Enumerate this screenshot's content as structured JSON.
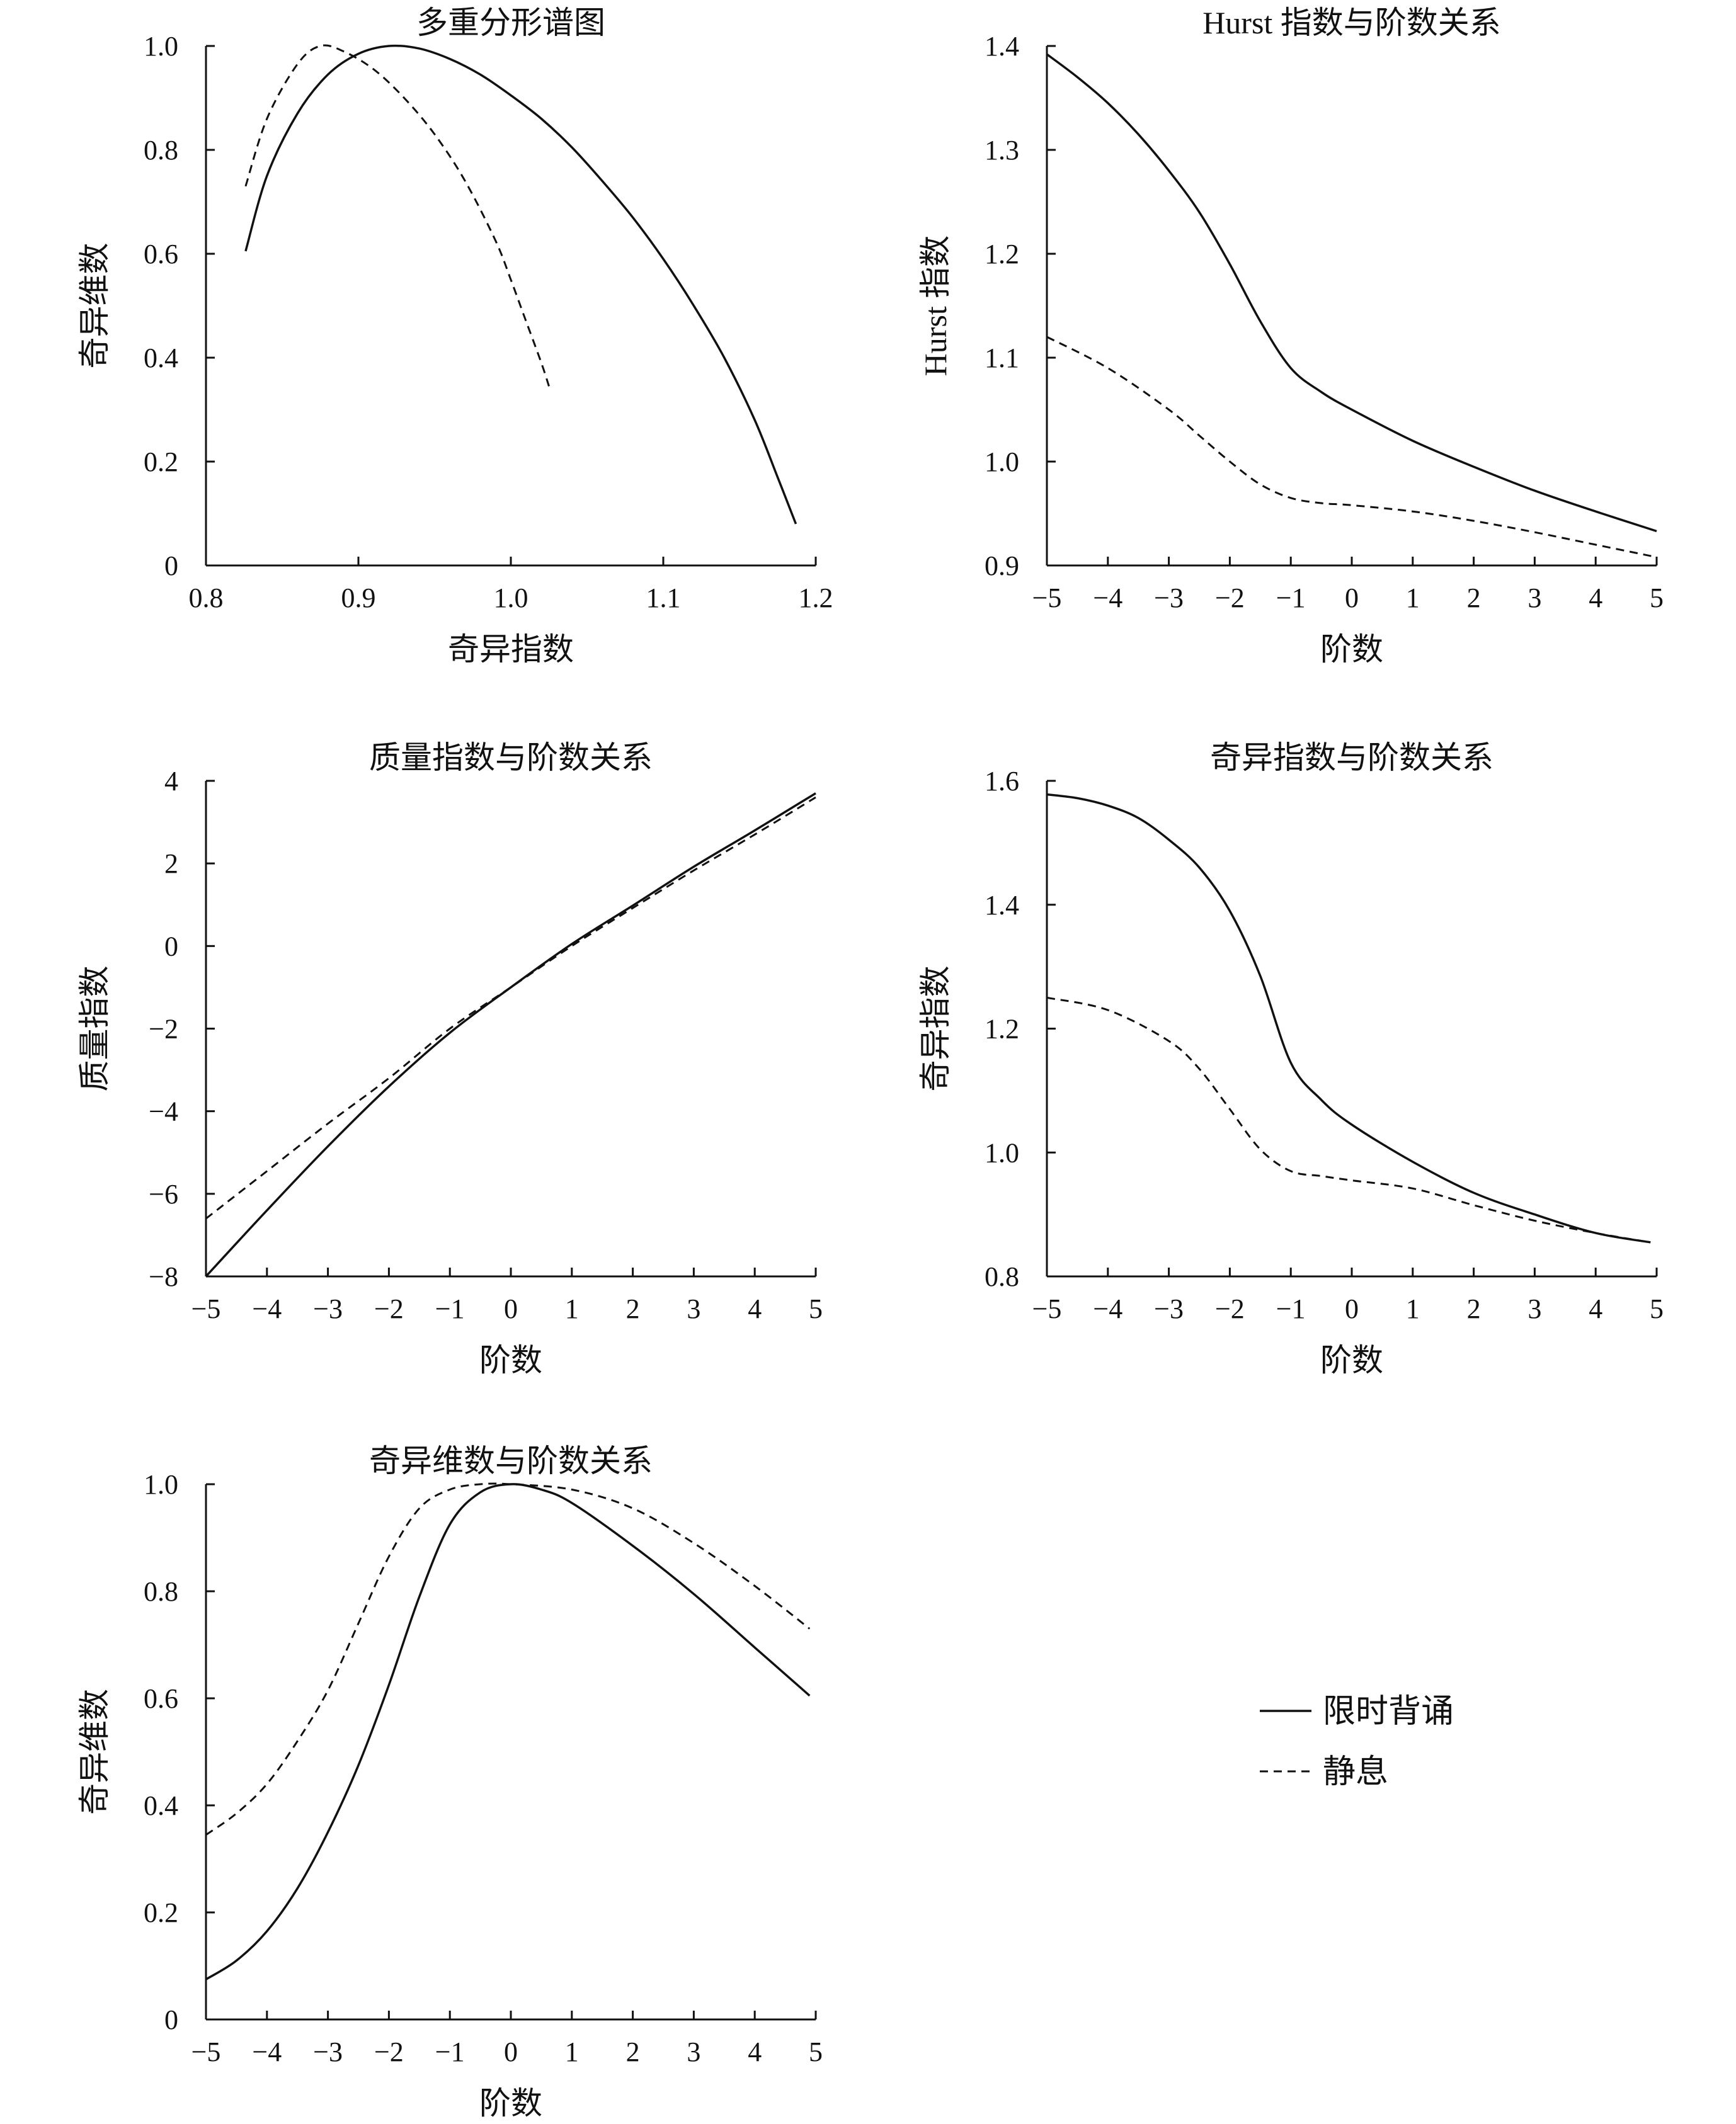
{
  "legend": {
    "items": [
      {
        "label": "限时背诵",
        "style": "solid"
      },
      {
        "label": "静息",
        "style": "dashed"
      }
    ]
  },
  "chart_data": [
    {
      "type": "line",
      "title": "多重分形谱图",
      "xlabel": "奇异指数",
      "ylabel": "奇异维数",
      "xlim": [
        0.8,
        1.2
      ],
      "ylim": [
        0,
        1.0
      ],
      "xticks": [
        "0.8",
        "0.9",
        "1.0",
        "1.1",
        "1.2"
      ],
      "yticks": [
        "0",
        "0.2",
        "0.4",
        "0.6",
        "0.8",
        "1.0"
      ],
      "series": [
        {
          "name": "限时背诵",
          "style": "solid",
          "x": [
            0.826,
            0.84,
            0.86,
            0.88,
            0.9,
            0.92,
            0.94,
            0.96,
            0.98,
            1.0,
            1.02,
            1.04,
            1.06,
            1.08,
            1.1,
            1.12,
            1.14,
            1.16,
            1.175,
            1.187
          ],
          "y": [
            0.605,
            0.75,
            0.87,
            0.945,
            0.985,
            1.0,
            0.995,
            0.975,
            0.945,
            0.905,
            0.86,
            0.805,
            0.74,
            0.67,
            0.59,
            0.5,
            0.4,
            0.28,
            0.17,
            0.08
          ]
        },
        {
          "name": "静息",
          "style": "dashed",
          "x": [
            0.826,
            0.84,
            0.86,
            0.875,
            0.89,
            0.91,
            0.93,
            0.95,
            0.97,
            0.99,
            1.0,
            1.01,
            1.02,
            1.025
          ],
          "y": [
            0.73,
            0.86,
            0.965,
            1.0,
            0.99,
            0.955,
            0.9,
            0.83,
            0.74,
            0.625,
            0.55,
            0.47,
            0.39,
            0.345
          ]
        }
      ]
    },
    {
      "type": "line",
      "title": "Hurst 指数与阶数关系",
      "xlabel": "阶数",
      "ylabel": "Hurst 指数",
      "xlim": [
        -5,
        5
      ],
      "ylim": [
        0.9,
        1.4
      ],
      "xticks": [
        "−5",
        "−4",
        "−3",
        "−2",
        "−1",
        "0",
        "1",
        "2",
        "3",
        "4",
        "5"
      ],
      "yticks": [
        "0.9",
        "1.0",
        "1.1",
        "1.2",
        "1.3",
        "1.4"
      ],
      "series": [
        {
          "name": "限时背诵",
          "style": "solid",
          "x": [
            -5,
            -4.5,
            -4,
            -3.5,
            -3,
            -2.5,
            -2,
            -1.5,
            -1,
            -0.5,
            0,
            1,
            2,
            3,
            4,
            5
          ],
          "y": [
            1.392,
            1.37,
            1.345,
            1.315,
            1.28,
            1.24,
            1.19,
            1.135,
            1.09,
            1.067,
            1.05,
            1.02,
            0.995,
            0.972,
            0.952,
            0.933
          ]
        },
        {
          "name": "静息",
          "style": "dashed",
          "x": [
            -5,
            -4,
            -3,
            -2.5,
            -2,
            -1.5,
            -1,
            -0.5,
            0,
            1,
            2,
            3,
            4,
            5
          ],
          "y": [
            1.12,
            1.09,
            1.05,
            1.025,
            1.0,
            0.978,
            0.965,
            0.96,
            0.958,
            0.952,
            0.943,
            0.932,
            0.92,
            0.908
          ]
        }
      ]
    },
    {
      "type": "line",
      "title": "质量指数与阶数关系",
      "xlabel": "阶数",
      "ylabel": "质量指数",
      "xlim": [
        -5,
        5
      ],
      "ylim": [
        -8,
        4
      ],
      "xticks": [
        "−5",
        "−4",
        "−3",
        "−2",
        "−1",
        "0",
        "1",
        "2",
        "3",
        "4",
        "5"
      ],
      "yticks": [
        "−8",
        "−6",
        "−4",
        "−2",
        "0",
        "2",
        "4"
      ],
      "series": [
        {
          "name": "限时背诵",
          "style": "solid",
          "x": [
            -5,
            -4,
            -3,
            -2,
            -1,
            0,
            1,
            2,
            3,
            4,
            5
          ],
          "y": [
            -8.0,
            -6.4,
            -4.85,
            -3.4,
            -2.1,
            -1.0,
            0.05,
            0.98,
            1.92,
            2.8,
            3.7
          ]
        },
        {
          "name": "静息",
          "style": "dashed",
          "x": [
            -5,
            -4,
            -3,
            -2,
            -1,
            0,
            1,
            2,
            3,
            4,
            5
          ],
          "y": [
            -6.6,
            -5.45,
            -4.3,
            -3.2,
            -2.0,
            -1.0,
            0.0,
            0.92,
            1.83,
            2.7,
            3.6
          ]
        }
      ]
    },
    {
      "type": "line",
      "title": "奇异指数与阶数关系",
      "xlabel": "阶数",
      "ylabel": "奇异指数",
      "xlim": [
        -5,
        5
      ],
      "ylim": [
        0.8,
        1.6
      ],
      "xticks": [
        "−5",
        "−4",
        "−3",
        "−2",
        "−1",
        "0",
        "1",
        "2",
        "3",
        "4",
        "5"
      ],
      "yticks": [
        "0.8",
        "1.0",
        "1.2",
        "1.4",
        "1.6"
      ],
      "series": [
        {
          "name": "限时背诵",
          "style": "solid",
          "x": [
            -5,
            -4.5,
            -4,
            -3.5,
            -3,
            -2.5,
            -2,
            -1.5,
            -1,
            -0.5,
            0,
            1,
            2,
            3,
            4,
            4.9
          ],
          "y": [
            1.578,
            1.572,
            1.56,
            1.54,
            1.505,
            1.46,
            1.39,
            1.285,
            1.145,
            1.085,
            1.045,
            0.985,
            0.935,
            0.9,
            0.87,
            0.855
          ]
        },
        {
          "name": "静息",
          "style": "dashed",
          "x": [
            -5,
            -4,
            -3,
            -2.5,
            -2,
            -1.5,
            -1,
            -0.5,
            0,
            1,
            2,
            3,
            4,
            4.9
          ],
          "y": [
            1.25,
            1.23,
            1.18,
            1.135,
            1.07,
            1.005,
            0.97,
            0.962,
            0.955,
            0.942,
            0.915,
            0.89,
            0.87,
            0.855
          ]
        }
      ]
    },
    {
      "type": "line",
      "title": "奇异维数与阶数关系",
      "xlabel": "阶数",
      "ylabel": "奇异维数",
      "xlim": [
        -5,
        5
      ],
      "ylim": [
        0,
        1.0
      ],
      "xticks": [
        "−5",
        "−4",
        "−3",
        "−2",
        "−1",
        "0",
        "1",
        "2",
        "3",
        "4",
        "5"
      ],
      "yticks": [
        "0",
        "0.2",
        "0.4",
        "0.6",
        "0.8",
        "1.0"
      ],
      "series": [
        {
          "name": "限时背诵",
          "style": "solid",
          "x": [
            -5,
            -4.5,
            -4,
            -3.5,
            -3,
            -2.5,
            -2,
            -1.5,
            -1,
            -0.5,
            0,
            0.5,
            1,
            2,
            3,
            4,
            4.9
          ],
          "y": [
            0.075,
            0.11,
            0.165,
            0.245,
            0.35,
            0.475,
            0.625,
            0.79,
            0.925,
            0.985,
            1.0,
            0.99,
            0.965,
            0.885,
            0.795,
            0.695,
            0.605
          ]
        },
        {
          "name": "静息",
          "style": "dashed",
          "x": [
            -5,
            -4.5,
            -4,
            -3.5,
            -3,
            -2.5,
            -2,
            -1.5,
            -1,
            -0.5,
            0,
            1,
            2,
            3,
            4,
            4.9
          ],
          "y": [
            0.345,
            0.385,
            0.44,
            0.52,
            0.615,
            0.74,
            0.865,
            0.955,
            0.99,
            1.0,
            1.0,
            0.99,
            0.955,
            0.89,
            0.81,
            0.73
          ]
        }
      ]
    }
  ]
}
